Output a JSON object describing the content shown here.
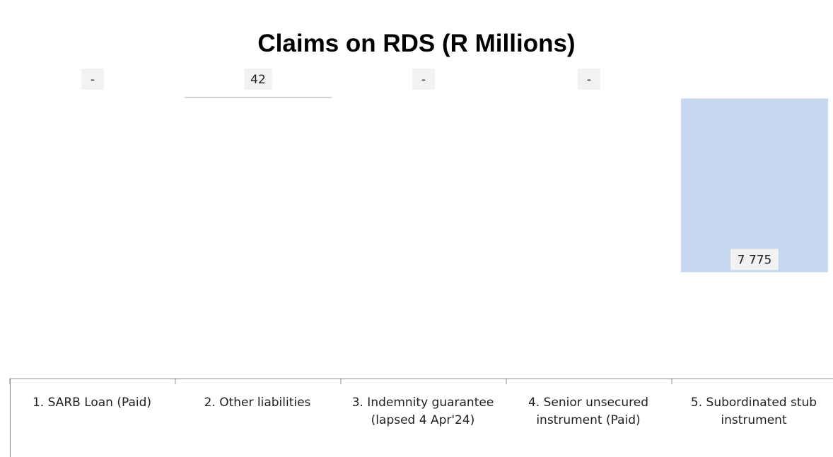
{
  "chart_data": {
    "type": "bar",
    "title": "Claims on RDS (R Millions)",
    "xlabel": "",
    "ylabel": "",
    "categories": [
      "1. SARB Loan (Paid)",
      "2. Other liabilities",
      "3. Indemnity guarantee (lapsed 4 Apr'24)",
      "4. Senior unsecured instrument (Paid)",
      "5. Subordinated stub instrument"
    ],
    "values": [
      0,
      42,
      0,
      0,
      7775
    ],
    "data_labels": [
      "-",
      "42",
      "-",
      "-",
      "7 775"
    ],
    "grid": false,
    "legend": "none",
    "colors": {
      "bar": "#c5d8f0",
      "label_bg": "#f2f2f2",
      "axis": "#8c8c8c",
      "zero_line": "#a6a6a6"
    }
  }
}
